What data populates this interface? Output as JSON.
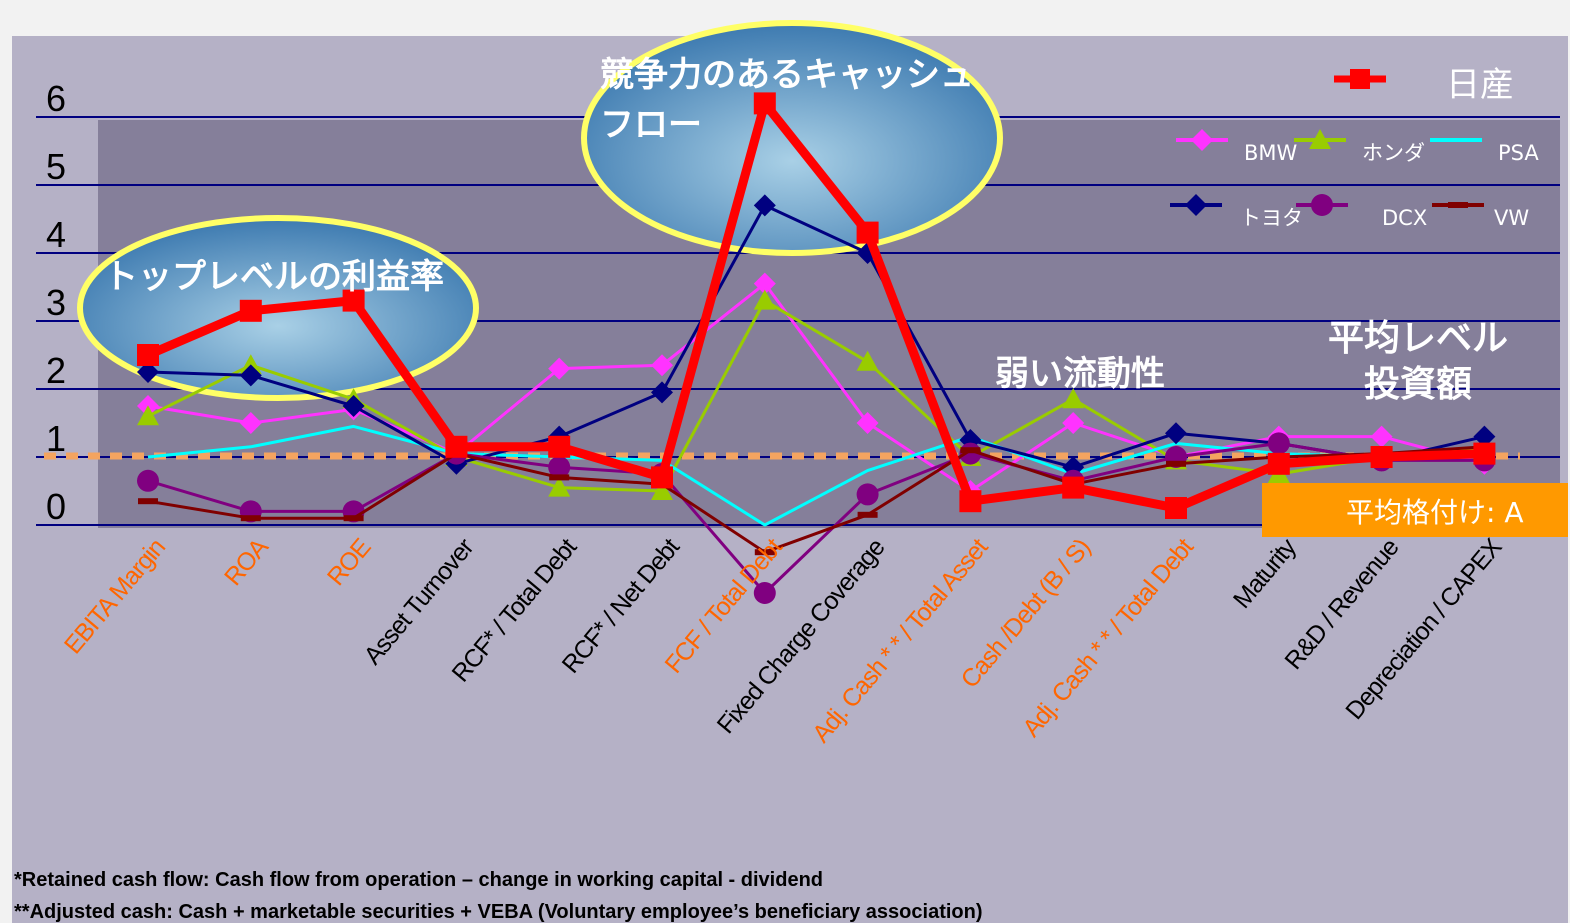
{
  "chart_data": {
    "type": "line",
    "categories": [
      "EBITA Margin",
      "ROA",
      "ROE",
      "Asset Turnover",
      "RCF* / Total Debt",
      "RCF* / Net Debt",
      "FCF / Total Debt",
      "Fixed Charge Coverage",
      "Adj. Cash * * /  Total Asset",
      "Cash /Debt (B / S)",
      "Adj. Cash * * / Total Debt",
      "Maturity",
      "R&D / Revenue",
      "Depreciation / CAPEX"
    ],
    "highlight_categories": [
      0,
      1,
      2,
      6,
      8,
      9,
      10
    ],
    "y_ticks": [
      "0",
      "1",
      "2",
      "3",
      "4",
      "5",
      "6"
    ],
    "ylim": [
      0,
      6
    ],
    "series": [
      {
        "name": "日産",
        "color": "#ff0000",
        "marker": "square",
        "width": 9,
        "values": [
          2.5,
          3.15,
          3.3,
          1.15,
          1.15,
          0.7,
          6.2,
          4.3,
          0.35,
          0.55,
          0.25,
          0.9,
          1.0,
          1.05
        ]
      },
      {
        "name": "BMW",
        "color": "#ff33ff",
        "marker": "diamond",
        "width": 3,
        "values": [
          1.75,
          1.5,
          1.7,
          1.05,
          2.3,
          2.35,
          3.55,
          1.5,
          0.5,
          1.5,
          1.0,
          1.3,
          1.3,
          0.9
        ]
      },
      {
        "name": "ホンダ",
        "color": "#99cc00",
        "marker": "triangle",
        "width": 3,
        "values": [
          1.6,
          2.35,
          1.85,
          1.0,
          0.55,
          0.5,
          3.3,
          2.4,
          1.0,
          1.85,
          0.95,
          0.75,
          1.0,
          1.15
        ]
      },
      {
        "name": "PSA",
        "color": "#00ffff",
        "marker": "none",
        "width": 3,
        "values": [
          1.0,
          1.15,
          1.45,
          1.05,
          1.0,
          0.95,
          0.0,
          0.8,
          1.3,
          0.75,
          1.2,
          1.05,
          1.0,
          1.05
        ]
      },
      {
        "name": "トヨタ",
        "color": "#000080",
        "marker": "diamond",
        "width": 3,
        "values": [
          2.25,
          2.2,
          1.75,
          0.9,
          1.3,
          1.95,
          4.7,
          4.0,
          1.25,
          0.85,
          1.35,
          1.2,
          0.95,
          1.3
        ]
      },
      {
        "name": "DCX",
        "color": "#800080",
        "marker": "circle",
        "width": 3,
        "values": [
          0.65,
          0.2,
          0.2,
          1.05,
          0.85,
          0.75,
          -1.0,
          0.45,
          1.05,
          0.65,
          1.0,
          1.2,
          0.95,
          0.95
        ]
      },
      {
        "name": "VW",
        "color": "#800000",
        "marker": "dash",
        "width": 3,
        "values": [
          0.35,
          0.1,
          0.1,
          1.05,
          0.7,
          0.6,
          -0.4,
          0.15,
          1.1,
          0.6,
          0.9,
          1.0,
          1.05,
          1.15
        ]
      }
    ],
    "reference_line": {
      "value": 1.0,
      "color": "#f4a460"
    },
    "annotations": [
      {
        "id": "top",
        "text": "トップレベルの利益率"
      },
      {
        "id": "cash",
        "text": "競争力のあるキャッシュフロー"
      },
      {
        "id": "liquidity",
        "text": "弱い流動性"
      },
      {
        "id": "avg",
        "text": "平均レベル投資額"
      }
    ],
    "rating_label": "平均格付け: A",
    "footnotes": [
      "*Retained cash flow: Cash flow from operation – change in working capital - dividend",
      "**Adjusted cash: Cash + marketable securities + VEBA (Voluntary employee’s beneficiary association)"
    ],
    "colors": {
      "highlight_label": "#ff6600",
      "normal_label": "#000000",
      "panel": "#b5b1c6",
      "plot": "#857f9a",
      "rating_box": "#ff9900"
    }
  }
}
